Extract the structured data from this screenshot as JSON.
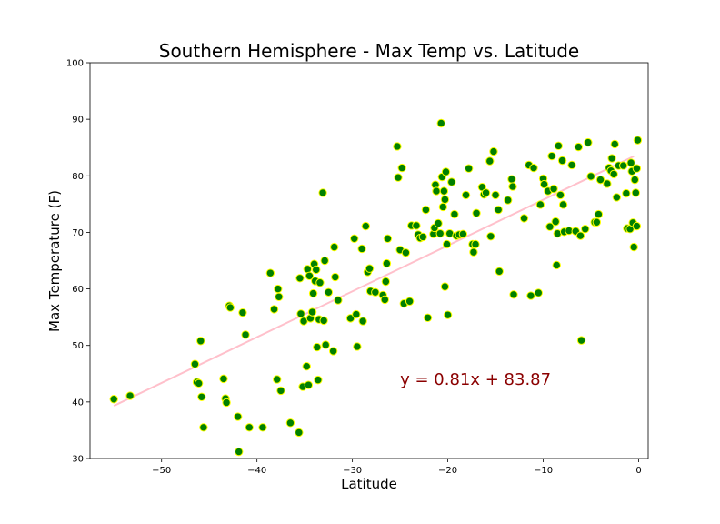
{
  "chart_data": {
    "type": "scatter",
    "title": "Southern Hemisphere - Max Temp vs. Latitude",
    "xlabel": "Latitude",
    "ylabel": "Max Temperature (F)",
    "xlim": [
      -57.5,
      1.0
    ],
    "ylim": [
      30,
      100
    ],
    "xticks": [
      -50,
      -40,
      -30,
      -20,
      -10,
      0
    ],
    "xtick_labels": [
      "−50",
      "−40",
      "−30",
      "−20",
      "−10",
      "0"
    ],
    "yticks": [
      30,
      40,
      50,
      60,
      70,
      80,
      90,
      100
    ],
    "ytick_labels": [
      "30",
      "40",
      "50",
      "60",
      "70",
      "80",
      "90",
      "100"
    ],
    "grid": false,
    "marker_color": "#008000",
    "marker_edge_color": "#ffff00",
    "regression": {
      "slope": 0.81,
      "intercept": 83.87,
      "x_range": [
        -55.0,
        -0.5
      ],
      "color": "#ffc0cb",
      "equation": "y = 0.81x + 83.87",
      "equation_color": "#8b0000",
      "equation_anchor": [
        -25,
        43
      ]
    },
    "points": [
      [
        -55.0,
        40.5
      ],
      [
        -53.3,
        41.1
      ],
      [
        -46.5,
        46.7
      ],
      [
        -46.3,
        43.5
      ],
      [
        -46.1,
        43.3
      ],
      [
        -45.9,
        50.8
      ],
      [
        -45.8,
        40.9
      ],
      [
        -45.6,
        35.5
      ],
      [
        -43.5,
        44.1
      ],
      [
        -43.3,
        40.6
      ],
      [
        -43.2,
        39.9
      ],
      [
        -42.9,
        57.0
      ],
      [
        -42.8,
        56.7
      ],
      [
        -42.0,
        37.4
      ],
      [
        -41.9,
        31.2
      ],
      [
        -41.5,
        55.8
      ],
      [
        -41.2,
        51.9
      ],
      [
        -40.8,
        35.5
      ],
      [
        -39.4,
        35.5
      ],
      [
        -38.6,
        62.8
      ],
      [
        -38.2,
        56.4
      ],
      [
        -37.9,
        44.0
      ],
      [
        -37.8,
        60.0
      ],
      [
        -37.7,
        58.6
      ],
      [
        -37.5,
        42.0
      ],
      [
        -36.5,
        36.3
      ],
      [
        -35.6,
        34.6
      ],
      [
        -35.5,
        61.9
      ],
      [
        -35.4,
        55.6
      ],
      [
        -35.2,
        42.7
      ],
      [
        -35.1,
        54.3
      ],
      [
        -34.8,
        46.3
      ],
      [
        -34.7,
        63.5
      ],
      [
        -34.6,
        43.0
      ],
      [
        -34.5,
        62.3
      ],
      [
        -34.4,
        54.8
      ],
      [
        -34.2,
        55.9
      ],
      [
        -34.1,
        59.2
      ],
      [
        -34.0,
        64.4
      ],
      [
        -33.9,
        61.4
      ],
      [
        -33.8,
        63.4
      ],
      [
        -33.7,
        49.7
      ],
      [
        -33.6,
        43.9
      ],
      [
        -33.5,
        54.6
      ],
      [
        -33.4,
        61.1
      ],
      [
        -33.1,
        77.0
      ],
      [
        -33.0,
        54.4
      ],
      [
        -32.9,
        65.0
      ],
      [
        -32.8,
        50.1
      ],
      [
        -32.5,
        59.4
      ],
      [
        -32.0,
        49.0
      ],
      [
        -31.9,
        67.4
      ],
      [
        -31.8,
        62.1
      ],
      [
        -31.5,
        58.0
      ],
      [
        -30.2,
        54.8
      ],
      [
        -29.8,
        68.9
      ],
      [
        -29.6,
        55.5
      ],
      [
        -29.5,
        49.8
      ],
      [
        -29.0,
        67.1
      ],
      [
        -28.9,
        54.3
      ],
      [
        -28.6,
        71.1
      ],
      [
        -28.4,
        63.0
      ],
      [
        -28.2,
        63.6
      ],
      [
        -28.1,
        59.6
      ],
      [
        -27.6,
        59.4
      ],
      [
        -26.8,
        58.9
      ],
      [
        -26.6,
        58.1
      ],
      [
        -26.5,
        61.3
      ],
      [
        -26.4,
        64.5
      ],
      [
        -26.3,
        68.9
      ],
      [
        -25.3,
        85.2
      ],
      [
        -25.2,
        79.7
      ],
      [
        -25.0,
        66.9
      ],
      [
        -24.8,
        81.4
      ],
      [
        -24.6,
        57.4
      ],
      [
        -24.4,
        66.4
      ],
      [
        -24.0,
        57.8
      ],
      [
        -23.8,
        71.2
      ],
      [
        -23.3,
        71.2
      ],
      [
        -23.1,
        69.6
      ],
      [
        -22.9,
        69.0
      ],
      [
        -22.6,
        69.2
      ],
      [
        -22.3,
        74.0
      ],
      [
        -22.1,
        54.9
      ],
      [
        -21.5,
        69.7
      ],
      [
        -21.4,
        70.8
      ],
      [
        -21.3,
        78.4
      ],
      [
        -21.2,
        77.3
      ],
      [
        -21.0,
        71.6
      ],
      [
        -20.8,
        69.8
      ],
      [
        -20.7,
        89.3
      ],
      [
        -20.6,
        79.8
      ],
      [
        -20.5,
        74.5
      ],
      [
        -20.4,
        77.3
      ],
      [
        -20.3,
        75.8
      ],
      [
        -20.2,
        80.7
      ],
      [
        -20.3,
        60.4
      ],
      [
        -20.1,
        67.9
      ],
      [
        -20.0,
        55.4
      ],
      [
        -19.8,
        69.8
      ],
      [
        -19.6,
        78.9
      ],
      [
        -19.3,
        73.2
      ],
      [
        -19.1,
        69.4
      ],
      [
        -18.8,
        69.6
      ],
      [
        -18.4,
        69.7
      ],
      [
        -18.1,
        76.6
      ],
      [
        -17.8,
        81.3
      ],
      [
        -17.4,
        67.9
      ],
      [
        -17.3,
        66.5
      ],
      [
        -17.1,
        67.9
      ],
      [
        -17.0,
        73.4
      ],
      [
        -16.4,
        78.0
      ],
      [
        -16.2,
        76.7
      ],
      [
        -16.0,
        77.0
      ],
      [
        -15.6,
        82.6
      ],
      [
        -15.5,
        69.3
      ],
      [
        -15.2,
        84.3
      ],
      [
        -15.0,
        76.6
      ],
      [
        -14.7,
        74.0
      ],
      [
        -14.6,
        63.1
      ],
      [
        -13.7,
        75.7
      ],
      [
        -13.3,
        79.4
      ],
      [
        -13.2,
        78.1
      ],
      [
        -13.1,
        59.0
      ],
      [
        -12.0,
        72.5
      ],
      [
        -11.5,
        81.9
      ],
      [
        -11.3,
        58.8
      ],
      [
        -11.0,
        81.4
      ],
      [
        -10.5,
        59.3
      ],
      [
        -10.3,
        74.9
      ],
      [
        -10.0,
        79.5
      ],
      [
        -9.9,
        78.5
      ],
      [
        -9.5,
        77.3
      ],
      [
        -9.3,
        71.0
      ],
      [
        -9.1,
        83.5
      ],
      [
        -8.9,
        77.7
      ],
      [
        -8.7,
        71.9
      ],
      [
        -8.6,
        64.2
      ],
      [
        -8.5,
        69.8
      ],
      [
        -8.4,
        85.3
      ],
      [
        -8.2,
        76.6
      ],
      [
        -8.0,
        82.7
      ],
      [
        -7.9,
        74.9
      ],
      [
        -7.8,
        70.1
      ],
      [
        -7.3,
        70.3
      ],
      [
        -7.0,
        81.9
      ],
      [
        -6.6,
        70.2
      ],
      [
        -6.3,
        85.1
      ],
      [
        -6.1,
        69.4
      ],
      [
        -6.0,
        50.9
      ],
      [
        -5.6,
        70.6
      ],
      [
        -5.3,
        85.9
      ],
      [
        -5.0,
        79.9
      ],
      [
        -4.6,
        71.8
      ],
      [
        -4.4,
        71.8
      ],
      [
        -4.2,
        73.2
      ],
      [
        -4.0,
        79.3
      ],
      [
        -3.3,
        78.6
      ],
      [
        -3.1,
        81.4
      ],
      [
        -2.9,
        80.9
      ],
      [
        -2.8,
        83.1
      ],
      [
        -2.6,
        80.3
      ],
      [
        -2.5,
        85.6
      ],
      [
        -2.3,
        76.2
      ],
      [
        -2.1,
        81.8
      ],
      [
        -1.6,
        81.8
      ],
      [
        -1.3,
        76.9
      ],
      [
        -1.2,
        70.7
      ],
      [
        -0.9,
        70.6
      ],
      [
        -0.8,
        82.3
      ],
      [
        -0.7,
        80.8
      ],
      [
        -0.6,
        71.7
      ],
      [
        -0.5,
        67.4
      ],
      [
        -0.4,
        79.3
      ],
      [
        -0.3,
        77.0
      ],
      [
        -0.2,
        81.3
      ],
      [
        -0.2,
        71.1
      ],
      [
        -0.1,
        86.3
      ]
    ]
  }
}
